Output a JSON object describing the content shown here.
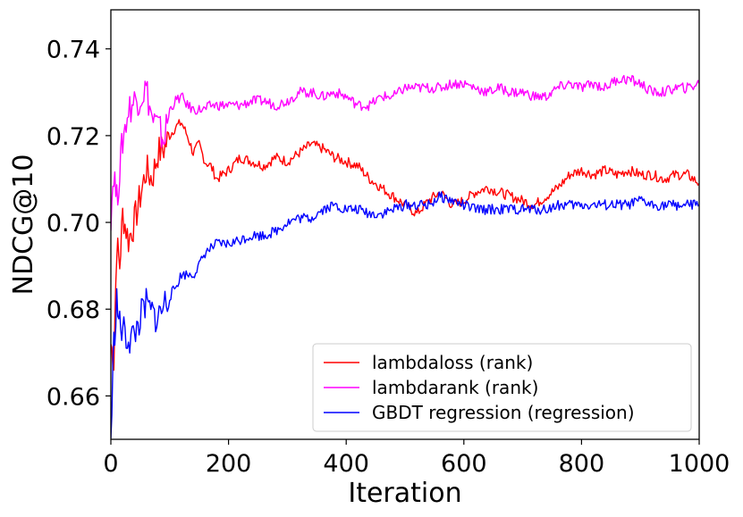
{
  "chart_data": {
    "type": "line",
    "xlabel": "Iteration",
    "ylabel": "NDCG@10",
    "xlim": [
      0,
      1000
    ],
    "ylim": [
      0.65,
      0.749
    ],
    "xticks": [
      0,
      200,
      400,
      600,
      800,
      1000
    ],
    "yticks": [
      0.66,
      0.68,
      0.7,
      0.72,
      0.74
    ],
    "xtick_labels": [
      "0",
      "200",
      "400",
      "600",
      "800",
      "1000"
    ],
    "ytick_labels": [
      "0.66",
      "0.68",
      "0.70",
      "0.72",
      "0.74"
    ],
    "grid": false,
    "legend_position": "lower-right",
    "series": [
      {
        "name": "lambdaloss (rank)",
        "color": "#ff0000",
        "x": [
          0,
          5,
          10,
          15,
          20,
          30,
          40,
          50,
          60,
          70,
          80,
          90,
          100,
          110,
          120,
          130,
          140,
          150,
          160,
          170,
          180,
          200,
          220,
          240,
          260,
          280,
          300,
          320,
          340,
          360,
          380,
          400,
          420,
          440,
          460,
          480,
          500,
          520,
          540,
          560,
          580,
          600,
          620,
          640,
          660,
          680,
          700,
          720,
          740,
          760,
          780,
          800,
          820,
          840,
          860,
          880,
          900,
          920,
          940,
          960,
          980,
          1000
        ],
        "y": [
          0.672,
          0.668,
          0.695,
          0.69,
          0.702,
          0.696,
          0.7,
          0.706,
          0.712,
          0.71,
          0.716,
          0.717,
          0.72,
          0.722,
          0.723,
          0.72,
          0.716,
          0.718,
          0.714,
          0.713,
          0.71,
          0.712,
          0.715,
          0.714,
          0.713,
          0.715,
          0.714,
          0.716,
          0.718,
          0.717,
          0.715,
          0.714,
          0.713,
          0.71,
          0.708,
          0.706,
          0.704,
          0.702,
          0.705,
          0.707,
          0.704,
          0.705,
          0.707,
          0.708,
          0.707,
          0.706,
          0.705,
          0.704,
          0.706,
          0.708,
          0.711,
          0.712,
          0.711,
          0.712,
          0.711,
          0.712,
          0.711,
          0.711,
          0.71,
          0.711,
          0.711,
          0.709
        ]
      },
      {
        "name": "lambdarank (rank)",
        "color": "#ff00ff",
        "x": [
          0,
          5,
          10,
          15,
          20,
          30,
          40,
          50,
          60,
          70,
          80,
          90,
          100,
          110,
          120,
          130,
          140,
          150,
          160,
          170,
          180,
          200,
          220,
          240,
          260,
          280,
          300,
          320,
          340,
          360,
          380,
          400,
          420,
          440,
          460,
          480,
          500,
          520,
          540,
          560,
          580,
          600,
          620,
          640,
          660,
          680,
          700,
          720,
          740,
          760,
          780,
          800,
          820,
          840,
          860,
          880,
          900,
          920,
          940,
          960,
          980,
          1000
        ],
        "y": [
          0.702,
          0.712,
          0.705,
          0.712,
          0.719,
          0.726,
          0.728,
          0.729,
          0.731,
          0.724,
          0.722,
          0.719,
          0.726,
          0.728,
          0.729,
          0.727,
          0.726,
          0.726,
          0.726,
          0.727,
          0.727,
          0.727,
          0.727,
          0.728,
          0.728,
          0.727,
          0.728,
          0.73,
          0.73,
          0.729,
          0.73,
          0.729,
          0.727,
          0.727,
          0.729,
          0.729,
          0.731,
          0.731,
          0.731,
          0.731,
          0.732,
          0.732,
          0.731,
          0.73,
          0.731,
          0.73,
          0.73,
          0.729,
          0.729,
          0.731,
          0.732,
          0.731,
          0.732,
          0.731,
          0.733,
          0.733,
          0.732,
          0.73,
          0.73,
          0.731,
          0.731,
          0.732
        ]
      },
      {
        "name": "GBDT regression (regression)",
        "color": "#0000ff",
        "x": [
          0,
          5,
          10,
          15,
          20,
          30,
          40,
          50,
          60,
          70,
          80,
          90,
          100,
          110,
          120,
          130,
          140,
          150,
          160,
          170,
          180,
          200,
          220,
          240,
          260,
          280,
          300,
          320,
          340,
          360,
          380,
          400,
          420,
          440,
          460,
          480,
          500,
          520,
          540,
          560,
          580,
          600,
          620,
          640,
          660,
          680,
          700,
          720,
          740,
          760,
          780,
          800,
          820,
          840,
          860,
          880,
          900,
          920,
          940,
          960,
          980,
          1000
        ],
        "y": [
          0.65,
          0.672,
          0.682,
          0.676,
          0.675,
          0.673,
          0.674,
          0.678,
          0.681,
          0.679,
          0.678,
          0.681,
          0.683,
          0.685,
          0.688,
          0.688,
          0.688,
          0.69,
          0.693,
          0.694,
          0.695,
          0.695,
          0.696,
          0.697,
          0.697,
          0.698,
          0.7,
          0.701,
          0.701,
          0.703,
          0.704,
          0.703,
          0.703,
          0.702,
          0.702,
          0.703,
          0.704,
          0.704,
          0.704,
          0.706,
          0.705,
          0.704,
          0.703,
          0.703,
          0.703,
          0.703,
          0.703,
          0.703,
          0.703,
          0.704,
          0.704,
          0.704,
          0.704,
          0.704,
          0.704,
          0.704,
          0.705,
          0.704,
          0.704,
          0.704,
          0.704,
          0.704
        ]
      }
    ]
  }
}
